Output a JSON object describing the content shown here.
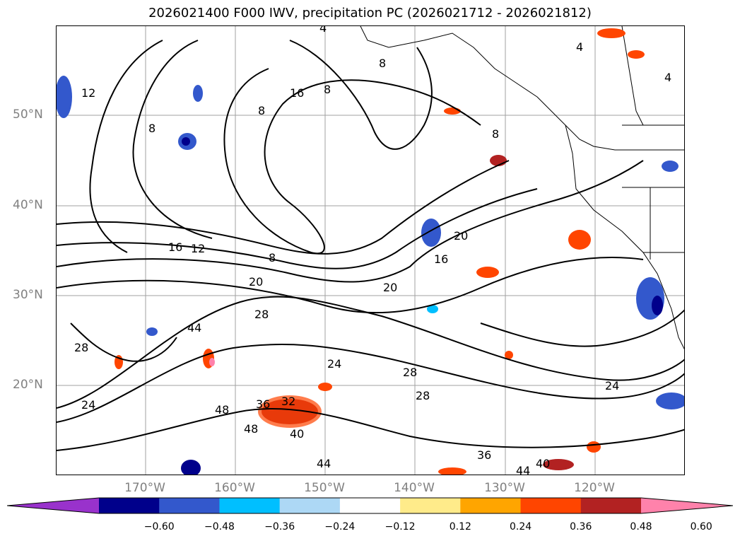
{
  "title": "2026021400 F000 IWV, precipitation PC (2026021712 - 2026021812)",
  "lat_labels": [
    "50°N",
    "40°N",
    "30°N",
    "20°N"
  ],
  "lon_labels": [
    "170°W",
    "160°W",
    "150°W",
    "140°W",
    "130°W",
    "120°W"
  ],
  "colorbar": {
    "colors": [
      "#9932cc",
      "#00008b",
      "#3358cc",
      "#00bfff",
      "#add8f5",
      "#ffffff",
      "#ffeb8a",
      "#ffa500",
      "#ff4500",
      "#b22222",
      "#ff82ab"
    ],
    "labels": [
      "−0.60",
      "−0.48",
      "−0.36",
      "−0.24",
      "−0.12",
      "0.12",
      "0.24",
      "0.36",
      "0.48",
      "0.60"
    ]
  },
  "contour_labels": [
    "4",
    "4",
    "4",
    "8",
    "8",
    "8",
    "8",
    "8",
    "8",
    "12",
    "12",
    "16",
    "16",
    "16",
    "20",
    "20",
    "20",
    "24",
    "24",
    "24",
    "28",
    "28",
    "28",
    "28",
    "32",
    "36",
    "36",
    "40",
    "40",
    "44",
    "44",
    "44",
    "48",
    "48"
  ]
}
